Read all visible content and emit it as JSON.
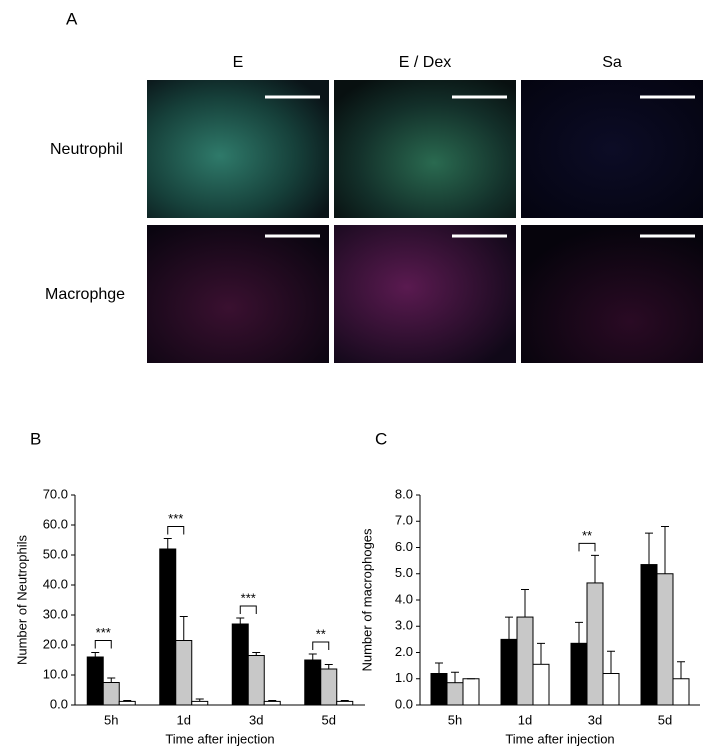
{
  "panel_a": {
    "label": "A",
    "columns": [
      "E",
      "E / Dex",
      "Sa"
    ],
    "rows": [
      "Neutrophil",
      "Macrophge"
    ]
  },
  "chart_data": [
    {
      "type": "bar",
      "panel_label": "B",
      "ylabel": "Number of Neutrophils",
      "xlabel": "Time after injection",
      "categories": [
        "5h",
        "1d",
        "3d",
        "5d"
      ],
      "ylim": [
        0,
        70
      ],
      "yticks": [
        {
          "value": 0,
          "label": "0.0"
        },
        {
          "value": 10,
          "label": "10.0"
        },
        {
          "value": 20,
          "label": "20.0"
        },
        {
          "value": 30,
          "label": "30.0"
        },
        {
          "value": 40,
          "label": "40.0"
        },
        {
          "value": 50,
          "label": "50.0"
        },
        {
          "value": 60,
          "label": "60.0"
        },
        {
          "value": 70,
          "label": "70.0"
        }
      ],
      "series": [
        {
          "color": "#000000",
          "values": [
            16,
            52,
            27,
            15
          ],
          "errors": [
            1.5,
            3.5,
            2,
            2
          ]
        },
        {
          "color": "#c8c8c8",
          "values": [
            7.5,
            21.5,
            16.5,
            12
          ],
          "errors": [
            1.5,
            8,
            1,
            1.5
          ]
        },
        {
          "color": "#ffffff",
          "values": [
            1.2,
            1.2,
            1.2,
            1.2
          ],
          "errors": [
            0.3,
            0.8,
            0.3,
            0.3
          ]
        }
      ],
      "significance": [
        "***",
        "***",
        "***",
        "**"
      ]
    },
    {
      "type": "bar",
      "panel_label": "C",
      "ylabel": "Number of macrophoges",
      "xlabel": "Time after injection",
      "categories": [
        "5h",
        "1d",
        "3d",
        "5d"
      ],
      "ylim": [
        0,
        8
      ],
      "yticks": [
        {
          "value": 0,
          "label": "0.0"
        },
        {
          "value": 1,
          "label": "1.0"
        },
        {
          "value": 2,
          "label": "2.0"
        },
        {
          "value": 3,
          "label": "3.0"
        },
        {
          "value": 4,
          "label": "4.0"
        },
        {
          "value": 5,
          "label": "5.0"
        },
        {
          "value": 6,
          "label": "6.0"
        },
        {
          "value": 7,
          "label": "7.0"
        },
        {
          "value": 8,
          "label": "8.0"
        }
      ],
      "series": [
        {
          "color": "#000000",
          "values": [
            1.2,
            2.5,
            2.35,
            5.35
          ],
          "errors": [
            0.4,
            0.85,
            0.8,
            1.2
          ]
        },
        {
          "color": "#c8c8c8",
          "values": [
            0.85,
            3.35,
            4.65,
            5.0
          ],
          "errors": [
            0.4,
            1.05,
            1.05,
            1.8
          ]
        },
        {
          "color": "#ffffff",
          "values": [
            1.0,
            1.55,
            1.2,
            1.0
          ],
          "errors": [
            0,
            0.8,
            0.85,
            0.65
          ]
        }
      ],
      "significance": [
        null,
        null,
        "**",
        null
      ]
    }
  ]
}
